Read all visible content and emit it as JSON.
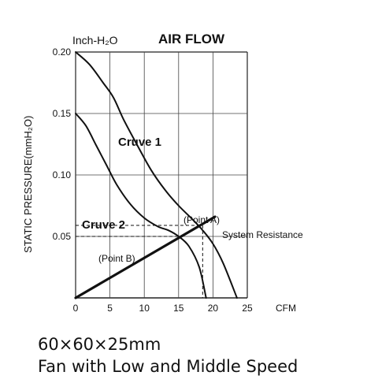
{
  "chart_data": {
    "type": "line",
    "title": "AIR FLOW",
    "y_unit": "Inch-H₂O",
    "xlabel": "CFM",
    "ylabel": "STATIC PRESSURE(mmH₂O)",
    "xlim": [
      0,
      25
    ],
    "ylim": [
      0,
      0.2
    ],
    "x_ticks": [
      0,
      5,
      10,
      15,
      20,
      25
    ],
    "x_tick_labels": [
      "0",
      "5",
      "10",
      "15",
      "20",
      "25"
    ],
    "y_ticks": [
      0.05,
      0.1,
      0.15,
      0.2
    ],
    "y_tick_labels": [
      "0.05",
      "0.10",
      "0.15",
      "0.20"
    ],
    "grid": true,
    "series": [
      {
        "name": "Cruve 1",
        "x": [
          0,
          2,
          4,
          5.5,
          7,
          9,
          11,
          13,
          15,
          17,
          18.5,
          20,
          21.5,
          23.5
        ],
        "y": [
          0.2,
          0.19,
          0.175,
          0.163,
          0.145,
          0.124,
          0.104,
          0.088,
          0.075,
          0.064,
          0.055,
          0.044,
          0.028,
          0
        ]
      },
      {
        "name": "Cruve 2",
        "x": [
          0,
          1.5,
          3,
          4.5,
          6,
          8,
          10,
          12,
          13.5,
          15,
          16.5,
          18,
          19
        ],
        "y": [
          0.15,
          0.14,
          0.124,
          0.108,
          0.092,
          0.076,
          0.065,
          0.058,
          0.055,
          0.05,
          0.042,
          0.025,
          0
        ]
      },
      {
        "name": "System Resistance",
        "x": [
          0,
          20.3
        ],
        "y": [
          0,
          0.066
        ]
      }
    ],
    "annotations": [
      {
        "id": "point-a",
        "text": "(Point A)",
        "x": 18.5,
        "y": 0.059
      },
      {
        "id": "point-b",
        "text": "(Point B)",
        "x": 15.3,
        "y": 0.05
      }
    ]
  },
  "caption": {
    "line1": "60×60×25mm",
    "line2": "Fan with Low and Middle Speed"
  }
}
